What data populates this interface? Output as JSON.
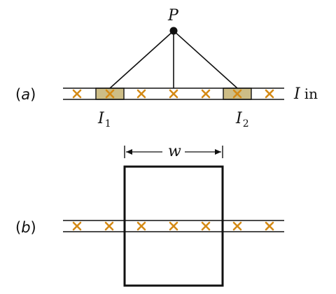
{
  "part_a": {
    "label_open": "(",
    "label_letter": "a",
    "label_close": ")",
    "point_label": "P",
    "current_label_symbol": "I",
    "current_label_text": "in",
    "element_1_symbol": "I",
    "element_1_subscript": "1",
    "element_2_symbol": "I",
    "element_2_subscript": "2",
    "x_marker_count": 7,
    "highlighted_markers": [
      2,
      6
    ]
  },
  "part_b": {
    "label_open": "(",
    "label_letter": "b",
    "label_close": ")",
    "width_label": "w",
    "x_marker_count": 7
  },
  "colors": {
    "wire": "#111111",
    "marker": "#D48A16",
    "highlight_fill": "#CDBD86",
    "loop": "#111111"
  },
  "icons": {
    "current_marker": "x-mark-into-page"
  }
}
